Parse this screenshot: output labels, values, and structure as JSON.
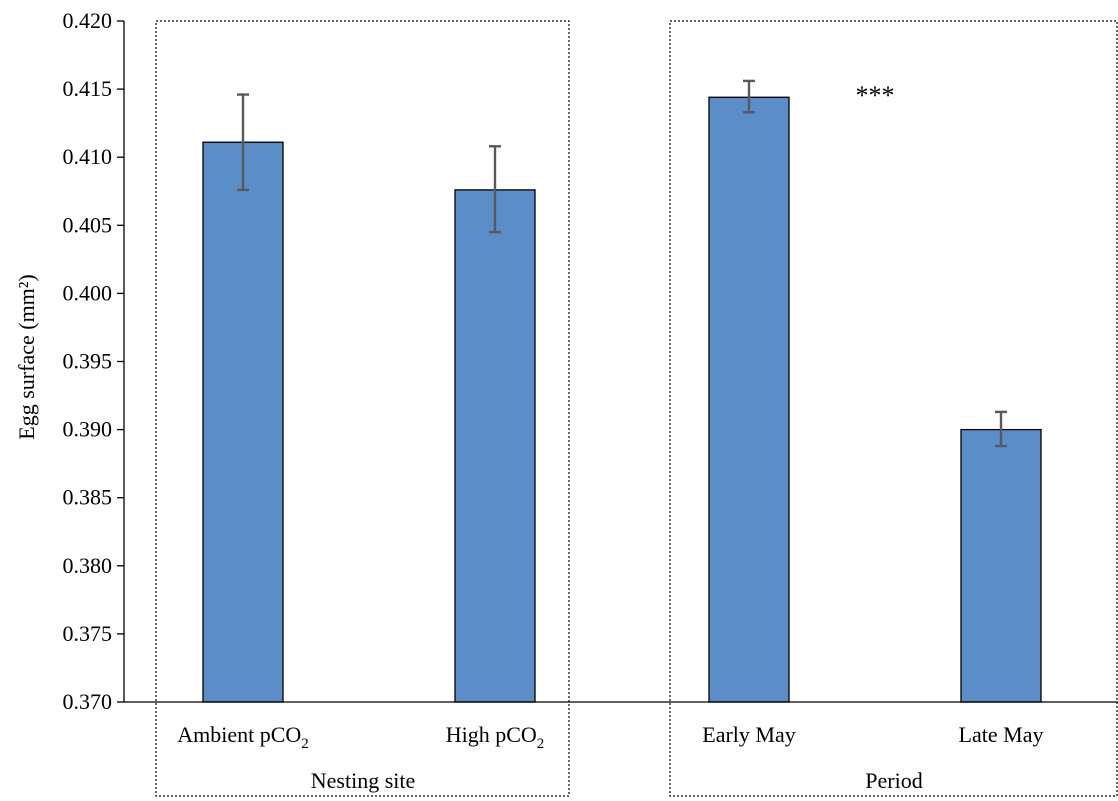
{
  "chart_data": {
    "type": "bar",
    "ylabel": "Egg surface (mm²)",
    "ylim": [
      0.37,
      0.42
    ],
    "yticks": [
      "0.370",
      "0.375",
      "0.380",
      "0.385",
      "0.390",
      "0.395",
      "0.400",
      "0.405",
      "0.410",
      "0.415",
      "0.420"
    ],
    "bar_color": "#5b8dc9",
    "error_color": "#595959",
    "groups": [
      {
        "label": "Nesting site",
        "categories": [
          {
            "label": "Ambient pCO",
            "sub": "2",
            "value": 0.4111,
            "err_low": 0.4076,
            "err_high": 0.4146
          },
          {
            "label": "High pCO",
            "sub": "2",
            "value": 0.4076,
            "err_low": 0.4045,
            "err_high": 0.4108
          }
        ]
      },
      {
        "label": "Period",
        "annotation": "***",
        "categories": [
          {
            "label": "Early May",
            "sub": "",
            "value": 0.4144,
            "err_low": 0.4133,
            "err_high": 0.4156
          },
          {
            "label": "Late May",
            "sub": "",
            "value": 0.39,
            "err_low": 0.3888,
            "err_high": 0.3913
          }
        ]
      }
    ]
  }
}
